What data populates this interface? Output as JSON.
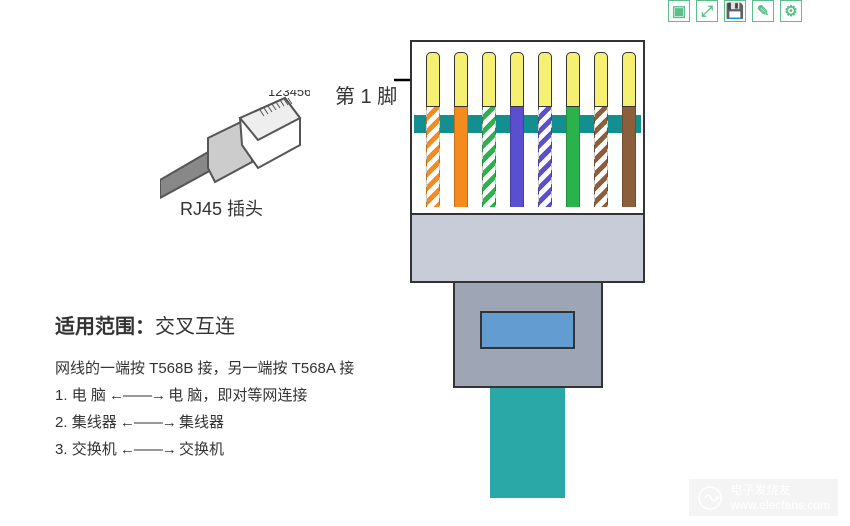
{
  "toolbar": {
    "icons": [
      "image-icon",
      "expand-icon",
      "save-icon",
      "edit-icon",
      "settings-icon"
    ],
    "glyphs": [
      "▣",
      "⤢",
      "💾",
      "✎",
      "⚙"
    ],
    "border_color": "#5bbf8c",
    "glyph_color": "#5bbf8c"
  },
  "small_plug": {
    "pin_numbers": "12345678",
    "caption": "RJ45 插头",
    "line_color": "#555555",
    "fill_color": "#ffffff",
    "cable_color": "#888888"
  },
  "pin1": {
    "label": "第 1 脚",
    "arrow_color": "#000000"
  },
  "connector": {
    "gold_color": "#f5f071",
    "teal_band_color": "#148f8f",
    "body_color": "#c7ccd8",
    "clip_body_color": "#9ea5b5",
    "clip_window_color": "#629cd0",
    "cable_color": "#2aa7a7",
    "border_color": "#333333",
    "pin_slot_left_positions": [
      14,
      42,
      70,
      98,
      126,
      154,
      182,
      210
    ],
    "wires": [
      {
        "type": "striped",
        "color": "#f58a1f",
        "label": "white-orange"
      },
      {
        "type": "solid",
        "color": "#f58a1f",
        "label": "orange"
      },
      {
        "type": "striped",
        "color": "#2bb24c",
        "label": "white-green"
      },
      {
        "type": "solid",
        "color": "#5a4fcf",
        "label": "blue"
      },
      {
        "type": "striped",
        "color": "#5a4fcf",
        "label": "white-blue"
      },
      {
        "type": "solid",
        "color": "#2bb24c",
        "label": "green"
      },
      {
        "type": "striped",
        "color": "#8b5e3c",
        "label": "white-brown"
      },
      {
        "type": "solid",
        "color": "#8b5e3c",
        "label": "brown"
      }
    ]
  },
  "text": {
    "scope_label": "适用范围：",
    "scope_value": "交叉互连",
    "subtitle": "网线的一端按 T568B 接，另一端按 T568A 接",
    "lines": [
      {
        "n": "1.",
        "left": "电    脑",
        "right": "电    脑，即对等网连接"
      },
      {
        "n": "2.",
        "left": "集线器",
        "right": "集线器"
      },
      {
        "n": "3.",
        "left": "交换机",
        "right": "交换机"
      }
    ],
    "arrow_glyph": "←——→"
  },
  "watermark": {
    "brand": "电子发烧友",
    "url": "www.elecfans.com",
    "logo_color": "#ffffff"
  }
}
